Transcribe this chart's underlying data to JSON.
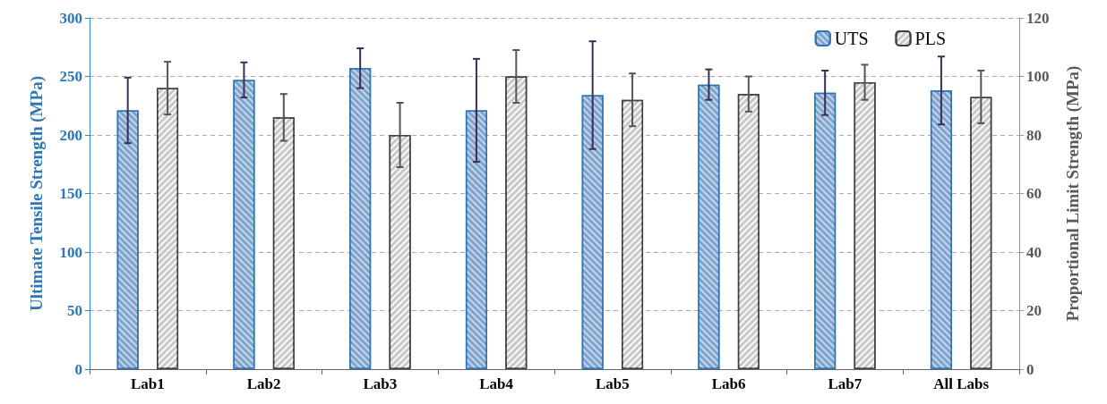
{
  "chart_data": {
    "type": "bar",
    "ylabel": "Ultimate Tensile Strength (MPa)",
    "y2label": "Proportional Limit Strength (MPa)",
    "categories": [
      "Lab1",
      "Lab2",
      "Lab3",
      "Lab4",
      "Lab5",
      "Lab6",
      "Lab7",
      "All Labs"
    ],
    "series": [
      {
        "name": "UTS",
        "color": "#7fa3cc",
        "values": [
          221,
          247,
          257,
          221,
          234,
          243,
          236,
          238
        ],
        "errors": [
          28,
          15,
          17,
          44,
          46,
          13,
          19,
          29
        ]
      },
      {
        "name": "PLS",
        "color": "#c8c8c8",
        "axis": "y2",
        "values": [
          96,
          86,
          80,
          100,
          92,
          94,
          98,
          93
        ],
        "errors": [
          9,
          8,
          11,
          9,
          9,
          6,
          6,
          9
        ]
      }
    ],
    "ylim": [
      0,
      300
    ],
    "yticks": [
      0,
      50,
      100,
      150,
      200,
      250,
      300
    ],
    "y2lim": [
      0,
      120
    ],
    "y2ticks": [
      0,
      20,
      40,
      60,
      80,
      100,
      120
    ],
    "grid": "y",
    "legend": "top right"
  }
}
